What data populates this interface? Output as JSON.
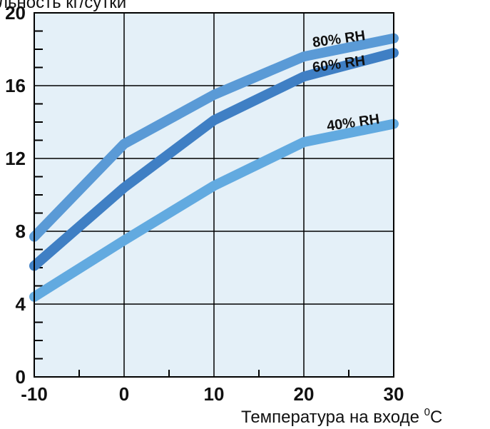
{
  "chart_data": {
    "type": "line",
    "title": "",
    "ylabel": "льность кг/сутки",
    "xlabel_prefix": "Температура на входе ",
    "xlabel_sup": "0",
    "xlabel_suffix": "C",
    "xlim": [
      -10,
      30
    ],
    "ylim": [
      0,
      20
    ],
    "x_ticks": [
      "-10",
      "0",
      "10",
      "20",
      "30"
    ],
    "y_ticks": [
      "0",
      "4",
      "8",
      "12",
      "16",
      "20"
    ],
    "grid": true,
    "x": [
      -10,
      0,
      10,
      20,
      30
    ],
    "series": [
      {
        "name": "80% RH",
        "values": [
          7.7,
          12.8,
          15.5,
          17.6,
          18.6
        ],
        "color": "#5a9ad6"
      },
      {
        "name": "60% RH",
        "values": [
          6.1,
          10.4,
          14.1,
          16.5,
          17.8
        ],
        "color": "#3f7fc4"
      },
      {
        "name": "40% RH",
        "values": [
          4.4,
          7.5,
          10.5,
          12.9,
          13.9
        ],
        "color": "#62aae0"
      }
    ],
    "colors": {
      "plot_bg": "#e4f0f8",
      "grid": "#000000"
    }
  }
}
